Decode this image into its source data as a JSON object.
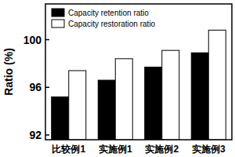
{
  "chart_data": {
    "type": "bar",
    "y_label": "Ratio (%)",
    "categories": [
      "比较例1",
      "实施例1",
      "实施例2",
      "实施例3"
    ],
    "series": [
      {
        "name": "Capacity retention ratio",
        "color": "#000000",
        "values": [
          95.2,
          96.6,
          97.7,
          98.9
        ]
      },
      {
        "name": "Capacity restoration ratio",
        "color": "#ffffff",
        "values": [
          97.4,
          98.4,
          99.1,
          100.8
        ]
      }
    ],
    "ylim": [
      91.6,
      103
    ],
    "yticks": [
      92,
      96,
      100
    ],
    "legend": "upper left",
    "grid": false
  }
}
